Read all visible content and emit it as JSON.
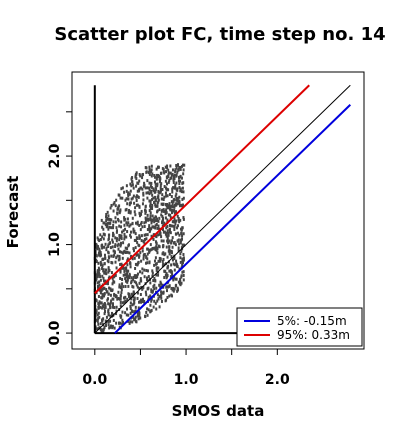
{
  "chart_data": {
    "type": "scatter",
    "title": "Scatter plot FC, time step no. 14",
    "xlabel": "SMOS data",
    "ylabel": "Forecast",
    "xlim": [
      -0.25,
      2.95
    ],
    "ylim": [
      -0.18,
      2.95
    ],
    "x_ticks": [
      0.0,
      1.0,
      2.0
    ],
    "y_ticks": [
      0.0,
      1.0,
      2.0
    ],
    "x_tick_labels": [
      "0.0",
      "1.0",
      "2.0"
    ],
    "y_tick_labels": [
      "0.0",
      "1.0",
      "2.0"
    ],
    "x_minor_step": 0.5,
    "y_minor_step": 0.5,
    "grid": false,
    "legend_position": "bottom-right",
    "point_color": "#444444",
    "scatter_extent": {
      "x_range": [
        0.0,
        0.98
      ],
      "y_lower_range": [
        0.0,
        0.55
      ],
      "y_upper_range": [
        0.9,
        1.9
      ]
    },
    "reference_lines": [
      {
        "name": "identity",
        "color": "#000000",
        "intercept": 0.0,
        "slope": 1.0,
        "x_range": [
          0.0,
          2.8
        ]
      },
      {
        "name": "5%",
        "label": "5%: -0.15m",
        "color": "#0000dd",
        "intercept": -0.22,
        "slope": 1.0,
        "x_range": [
          0.22,
          2.8
        ]
      },
      {
        "name": "95%",
        "label": "95%:  0.33m",
        "color": "#dd0000",
        "intercept": 0.45,
        "slope": 1.0,
        "x_range": [
          0.0,
          2.35
        ]
      }
    ],
    "axis_lines": [
      {
        "name": "zero-x-line",
        "from": [
          0.0,
          0.0
        ],
        "to": [
          2.8,
          0.0
        ]
      },
      {
        "name": "zero-y-line",
        "from": [
          0.0,
          0.0
        ],
        "to": [
          0.0,
          2.8
        ]
      }
    ],
    "legend": [
      {
        "label": "5%: -0.15m",
        "color": "#0000dd"
      },
      {
        "label": "95%:  0.33m",
        "color": "#dd0000"
      }
    ]
  }
}
